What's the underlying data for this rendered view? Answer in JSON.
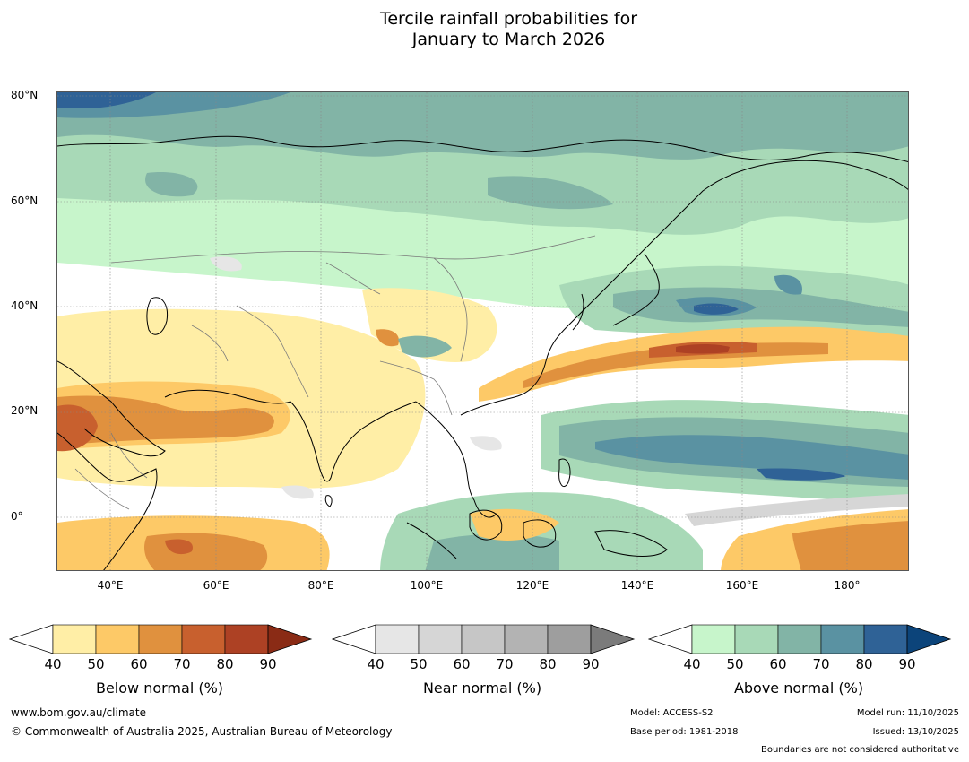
{
  "title": {
    "line1": "Tercile rainfall probabilities for",
    "line2": "January to March 2026"
  },
  "map": {
    "lat_labels": [
      "80°N",
      "60°N",
      "40°N",
      "20°N",
      "0°"
    ],
    "lon_labels": [
      "40°E",
      "60°E",
      "80°E",
      "100°E",
      "120°E",
      "140°E",
      "160°E",
      "180°"
    ],
    "extent": {
      "lon_min": 30,
      "lon_max": 191,
      "lat_min": -10,
      "lat_max": 81
    }
  },
  "colorbars": [
    {
      "caption": "Below normal (%)",
      "ticks": [
        "40",
        "50",
        "60",
        "70",
        "80",
        "90"
      ],
      "colors": [
        "#ffffff",
        "#ffeea6",
        "#fdc967",
        "#e0913e",
        "#c8602e",
        "#ad4124",
        "#8a2b15"
      ]
    },
    {
      "caption": "Near normal (%)",
      "ticks": [
        "40",
        "50",
        "60",
        "70",
        "80",
        "90"
      ],
      "colors": [
        "#ffffff",
        "#e6e6e6",
        "#d6d6d6",
        "#c6c6c6",
        "#b3b3b3",
        "#9e9e9e",
        "#7b7b7b"
      ]
    },
    {
      "caption": "Above normal (%)",
      "ticks": [
        "40",
        "50",
        "60",
        "70",
        "80",
        "90"
      ],
      "colors": [
        "#ffffff",
        "#c7f5cb",
        "#a8d9b7",
        "#82b4a6",
        "#5a92a2",
        "#2f6296",
        "#0c447a"
      ]
    }
  ],
  "footer": {
    "url": "www.bom.gov.au/climate",
    "copyright": "© Commonwealth of Australia 2025, Australian Bureau of Meteorology",
    "model": "Model: ACCESS-S2",
    "base_period": "Base period: 1981-2018",
    "model_run": "Model run: 11/10/2025",
    "issued": "Issued: 13/10/2025",
    "disclaimer": "Boundaries are not considered authoritative"
  }
}
